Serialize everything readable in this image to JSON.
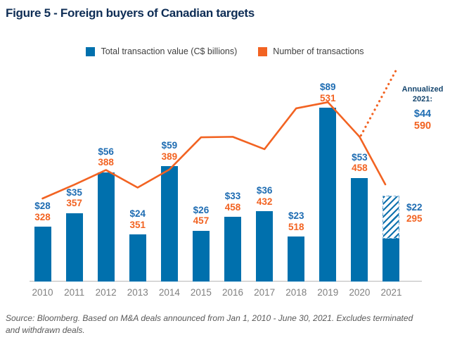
{
  "title": "Figure 5 - Foreign buyers of Canadian targets",
  "legend": {
    "items": [
      {
        "label": "Total transaction value (C$ billions)",
        "color": "#0070ad"
      },
      {
        "label": "Number of transactions",
        "color": "#f26322"
      }
    ]
  },
  "chart_data": {
    "type": "combo: bar + line",
    "categories": [
      "2010",
      "2011",
      "2012",
      "2013",
      "2014",
      "2015",
      "2016",
      "2017",
      "2018",
      "2019",
      "2020",
      "2021"
    ],
    "series": [
      {
        "name": "Total transaction value (C$ billions)",
        "chart": "bar",
        "color": "#0070ad",
        "values": [
          28,
          35,
          56,
          24,
          59,
          26,
          33,
          36,
          23,
          89,
          53,
          22
        ],
        "labels": [
          "$28",
          "$35",
          "$56",
          "$24",
          "$59",
          "$26",
          "$33",
          "$36",
          "$23",
          "$89",
          "$53",
          "$22"
        ]
      },
      {
        "name": "Number of transactions",
        "chart": "line",
        "color": "#f26322",
        "values": [
          328,
          357,
          388,
          351,
          389,
          457,
          458,
          432,
          518,
          531,
          458,
          295
        ],
        "labels": [
          "328",
          "357",
          "388",
          "351",
          "389",
          "457",
          "458",
          "432",
          "518",
          "531",
          "458",
          "295"
        ]
      }
    ],
    "annualized_2021": {
      "heading_line1": "Annualized",
      "heading_line2": "2021:",
      "value": 44,
      "value_label": "$44",
      "transactions": 590,
      "transactions_label": "590"
    },
    "axis": {
      "y_axis_shown": false,
      "gridlines": false,
      "baseline_value": 0
    },
    "legend_position": "top-center"
  },
  "source_note": "Source: Bloomberg. Based on M&A deals announced from Jan 1, 2010 - June 30, 2021. Excludes terminated and withdrawn deals.",
  "colors": {
    "title_navy": "#0e2d55",
    "bar_blue": "#0070ad",
    "orange": "#f26322",
    "value_label_blue": "#1e6cb2",
    "annualized_heading_navy": "#14456e",
    "year_label_gray": "#808080",
    "source_gray": "#595959",
    "axis_line_gray": "#b9b9b9"
  }
}
